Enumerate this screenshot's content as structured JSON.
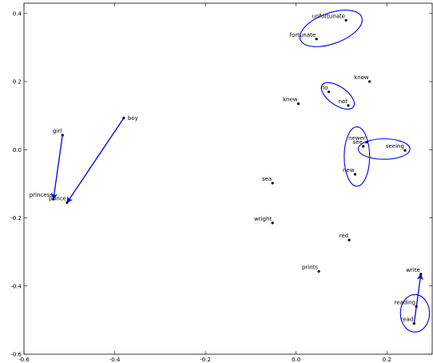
{
  "chart_data": {
    "type": "scatter",
    "title": "",
    "xlabel": "",
    "ylabel": "",
    "xlim": [
      -0.6,
      0.3
    ],
    "ylim": [
      -0.6,
      0.43
    ],
    "xticks": [
      -0.6,
      -0.4,
      -0.2,
      0.0,
      0.2
    ],
    "xtick_labels": [
      "-0.6",
      "-0.4",
      "-0.2",
      "0.0",
      "0.2"
    ],
    "yticks": [
      -0.6,
      -0.4,
      -0.2,
      0.0,
      0.2,
      0.4
    ],
    "ytick_labels": [
      "-0.6",
      "-0.4",
      "-0.2",
      "0.0",
      "0.2",
      "0.4"
    ],
    "grid": false,
    "point_color": "#000000",
    "accent_color": "#0000ee",
    "points": [
      {
        "label": "unfortunate",
        "x": 0.11,
        "y": 0.38
      },
      {
        "label": "fortunate",
        "x": 0.045,
        "y": 0.325
      },
      {
        "label": "know",
        "x": 0.162,
        "y": 0.2
      },
      {
        "label": "no",
        "x": 0.072,
        "y": 0.17
      },
      {
        "label": "knew",
        "x": 0.005,
        "y": 0.135
      },
      {
        "label": "not",
        "x": 0.115,
        "y": 0.13
      },
      {
        "label": "boy",
        "x": -0.38,
        "y": 0.093
      },
      {
        "label": "girl",
        "x": -0.515,
        "y": 0.043
      },
      {
        "label": "newer",
        "x": 0.155,
        "y": 0.022
      },
      {
        "label": "see",
        "x": 0.148,
        "y": 0.01
      },
      {
        "label": "seeing",
        "x": 0.24,
        "y": -0.002
      },
      {
        "label": "new",
        "x": 0.13,
        "y": -0.072
      },
      {
        "label": "sea",
        "x": -0.052,
        "y": -0.098
      },
      {
        "label": "princess",
        "x": -0.535,
        "y": -0.145
      },
      {
        "label": "prince",
        "x": -0.505,
        "y": -0.155
      },
      {
        "label": "wright",
        "x": -0.052,
        "y": -0.215
      },
      {
        "label": "red",
        "x": 0.117,
        "y": -0.265
      },
      {
        "label": "prints",
        "x": 0.05,
        "y": -0.357
      },
      {
        "label": "write",
        "x": 0.275,
        "y": -0.365
      },
      {
        "label": "reading",
        "x": 0.265,
        "y": -0.46
      },
      {
        "label": "read",
        "x": 0.26,
        "y": -0.51
      }
    ],
    "arrows": [
      {
        "from": "girl",
        "to": "princess"
      },
      {
        "from": "boy",
        "to": "prince"
      },
      {
        "from": "read",
        "to": "write"
      }
    ],
    "clusters": [
      {
        "cx": 0.077,
        "cy": 0.356,
        "rx": 0.072,
        "ry": 0.045,
        "angle": 20
      },
      {
        "cx": 0.092,
        "cy": 0.158,
        "rx": 0.042,
        "ry": 0.027,
        "angle": -35
      },
      {
        "cx": 0.134,
        "cy": -0.02,
        "rx": 0.028,
        "ry": 0.087,
        "angle": 0
      },
      {
        "cx": 0.194,
        "cy": 0.002,
        "rx": 0.057,
        "ry": 0.03,
        "angle": 0
      },
      {
        "cx": 0.262,
        "cy": -0.48,
        "rx": 0.032,
        "ry": 0.055,
        "angle": 0
      }
    ]
  }
}
